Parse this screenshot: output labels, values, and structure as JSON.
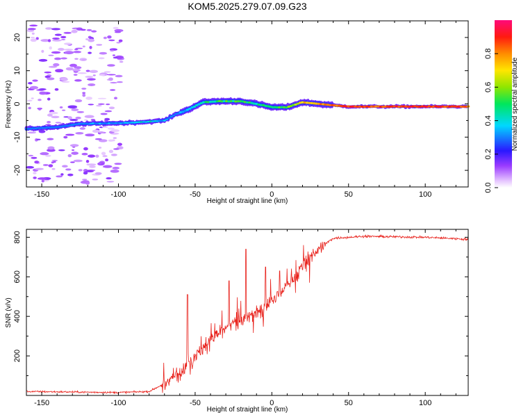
{
  "title": "KOM5.2025.279.07.09.G23",
  "chart_data": [
    {
      "type": "heatmap",
      "xlabel": "Height of straight line (km)",
      "ylabel": "Frequency (Hz)",
      "xlim": [
        -160,
        128
      ],
      "ylim": [
        -25,
        25
      ],
      "x_ticks": [
        -150,
        -100,
        -50,
        0,
        50,
        100
      ],
      "y_ticks": [
        -20,
        -10,
        0,
        10,
        20
      ],
      "colorbar_label": "Normalized spectral amplitude",
      "colorbar_ticks": [
        0.0,
        0.2,
        0.4,
        0.6,
        0.8
      ],
      "colorbar_range": [
        0,
        1
      ],
      "ridge": [
        {
          "x": -160,
          "f": -7.5,
          "amp": 0.15
        },
        {
          "x": -140,
          "f": -7.0,
          "amp": 0.2
        },
        {
          "x": -125,
          "f": -6.0,
          "amp": 0.3
        },
        {
          "x": -100,
          "f": -5.8,
          "amp": 0.3
        },
        {
          "x": -85,
          "f": -5.5,
          "amp": 0.4
        },
        {
          "x": -70,
          "f": -5.0,
          "amp": 0.35
        },
        {
          "x": -62,
          "f": -3.0,
          "amp": 0.3
        },
        {
          "x": -55,
          "f": -1.8,
          "amp": 0.35
        },
        {
          "x": -45,
          "f": 0.5,
          "amp": 0.45
        },
        {
          "x": -35,
          "f": 0.8,
          "amp": 0.5
        },
        {
          "x": -20,
          "f": 0.8,
          "amp": 0.5
        },
        {
          "x": -10,
          "f": 0.0,
          "amp": 0.45
        },
        {
          "x": 0,
          "f": -1.0,
          "amp": 0.5
        },
        {
          "x": 10,
          "f": -1.0,
          "amp": 0.55
        },
        {
          "x": 20,
          "f": 0.5,
          "amp": 0.7
        },
        {
          "x": 30,
          "f": 0.0,
          "amp": 0.8
        },
        {
          "x": 50,
          "f": -0.8,
          "amp": 0.9
        },
        {
          "x": 70,
          "f": -0.8,
          "amp": 0.85
        },
        {
          "x": 100,
          "f": -0.8,
          "amp": 0.9
        },
        {
          "x": 128,
          "f": -0.8,
          "amp": 0.85
        }
      ]
    },
    {
      "type": "line",
      "xlabel": "Height of straight line (km)",
      "ylabel": "SNR (v/v)",
      "xlim": [
        -160,
        128
      ],
      "ylim": [
        0,
        840
      ],
      "x_ticks": [
        -150,
        -100,
        -50,
        0,
        50,
        100
      ],
      "y_ticks": [
        200,
        400,
        600,
        800
      ],
      "color": "#e8201a",
      "trend": [
        {
          "x": -160,
          "y": 20
        },
        {
          "x": -100,
          "y": 15
        },
        {
          "x": -80,
          "y": 20
        },
        {
          "x": -70,
          "y": 60
        },
        {
          "x": -60,
          "y": 120
        },
        {
          "x": -50,
          "y": 200
        },
        {
          "x": -40,
          "y": 280
        },
        {
          "x": -30,
          "y": 340
        },
        {
          "x": -20,
          "y": 380
        },
        {
          "x": -10,
          "y": 420
        },
        {
          "x": 0,
          "y": 480
        },
        {
          "x": 10,
          "y": 560
        },
        {
          "x": 20,
          "y": 650
        },
        {
          "x": 30,
          "y": 740
        },
        {
          "x": 40,
          "y": 795
        },
        {
          "x": 60,
          "y": 805
        },
        {
          "x": 100,
          "y": 800
        },
        {
          "x": 128,
          "y": 790
        }
      ],
      "spikes": [
        {
          "x": -55,
          "y": 510
        },
        {
          "x": -28,
          "y": 580
        },
        {
          "x": -17,
          "y": 740
        },
        {
          "x": -4,
          "y": 650
        },
        {
          "x": 5,
          "y": 630
        }
      ]
    }
  ]
}
